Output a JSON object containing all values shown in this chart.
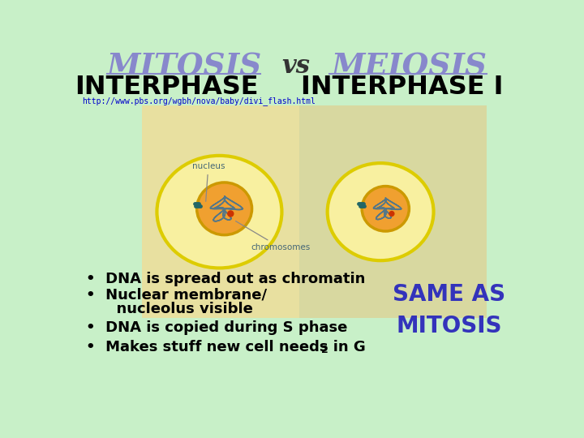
{
  "bg_color": "#c8f0c8",
  "title_mitosis": "MITOSIS",
  "title_vs": "vs",
  "title_meiosis": "MEIOSIS",
  "title_color": "#8888cc",
  "title_vs_color": "#333333",
  "subtitle_left": "INTERPHASE",
  "subtitle_right": "INTERPHASE I",
  "subtitle_color": "#000000",
  "url_text": "http://www.pbs.org/wgbh/nova/baby/divi_flash.html",
  "url_color": "#0000cc",
  "left_panel_color": "#e8e0a0",
  "right_panel_color": "#d8d8a0",
  "bullet_color": "#000000",
  "bullet_points": [
    "DNA is spread out as chromatin",
    "Nuclear membrane/",
    "     nucleolus visible",
    "DNA is copied during S phase",
    "Makes stuff new cell needs in G"
  ],
  "same_as_text": "SAME AS\nMITOSIS",
  "same_as_color": "#3333bb",
  "cell_outer_color": "#ddcc00",
  "cell_fill_color": "#f8f0a0",
  "nucleus_outer_color": "#cc9900",
  "nucleus_fill_color": "#f0a030",
  "chromatin_color": "#557788",
  "nucleolus_color": "#cc3300",
  "centriole_color": "#226666"
}
